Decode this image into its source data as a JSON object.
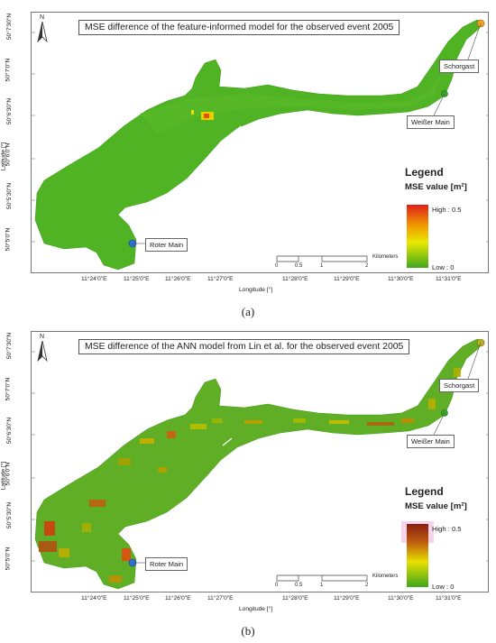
{
  "panels": [
    {
      "id": "a",
      "title": "MSE difference of the feature-informed model for the observed event 2005",
      "north": "N",
      "lat_ticks": [
        "50°7'30\"N",
        "50°7'0\"N",
        "50°6'30\"N",
        "50°6'0\"N",
        "50°5'30\"N",
        "50°5'0\"N"
      ],
      "lon_ticks": [
        "11°24'0\"E",
        "11°25'0\"E",
        "11°26'0\"E",
        "11°27'0\"E",
        "11°28'0\"E",
        "11°29'0\"E",
        "11°30'0\"E",
        "11°31'0\"E"
      ],
      "ylabel": "Latitude [°]",
      "xlabel": "Longitude [°]",
      "labels": {
        "schorgast": "Schorgast",
        "weisser": "Weißer Main",
        "roter": "Roter Main"
      },
      "legend": {
        "title": "Legend",
        "subtitle": "MSE value [m²]",
        "high": "High : 0.5",
        "low": "Low : 0"
      },
      "scale": {
        "unit": "Kilometers",
        "ticks": [
          "0",
          "0.5",
          "1",
          "2"
        ]
      },
      "caption": "(a)"
    },
    {
      "id": "b",
      "title": "MSE difference of the ANN model from Lin et al. for the observed event 2005",
      "north": "N",
      "lat_ticks": [
        "50°7'30\"N",
        "50°7'0\"N",
        "50°6'30\"N",
        "50°6'0\"N",
        "50°5'30\"N",
        "50°5'0\"N"
      ],
      "lon_ticks": [
        "11°24'0\"E",
        "11°25'0\"E",
        "11°26'0\"E",
        "11°27'0\"E",
        "11°28'0\"E",
        "11°29'0\"E",
        "11°30'0\"E",
        "11°31'0\"E"
      ],
      "ylabel": "Latitude [°]",
      "xlabel": "Longitude [°]",
      "labels": {
        "schorgast": "Schorgast",
        "weisser": "Weißer Main",
        "roter": "Roter Main"
      },
      "legend": {
        "title": "Legend",
        "subtitle": "MSE value [m²]",
        "high": "High : 0.5",
        "low": "Low : 0"
      },
      "scale": {
        "unit": "Kilometers",
        "ticks": [
          "0",
          "0.5",
          "1",
          "2"
        ]
      },
      "caption": "(b)"
    }
  ],
  "colors": {
    "low": "#4caf1f",
    "high": "#e02010",
    "schorgast_point": "#f0a020",
    "weisser_point": "#3aa030",
    "roter_point": "#2f6fd6"
  }
}
